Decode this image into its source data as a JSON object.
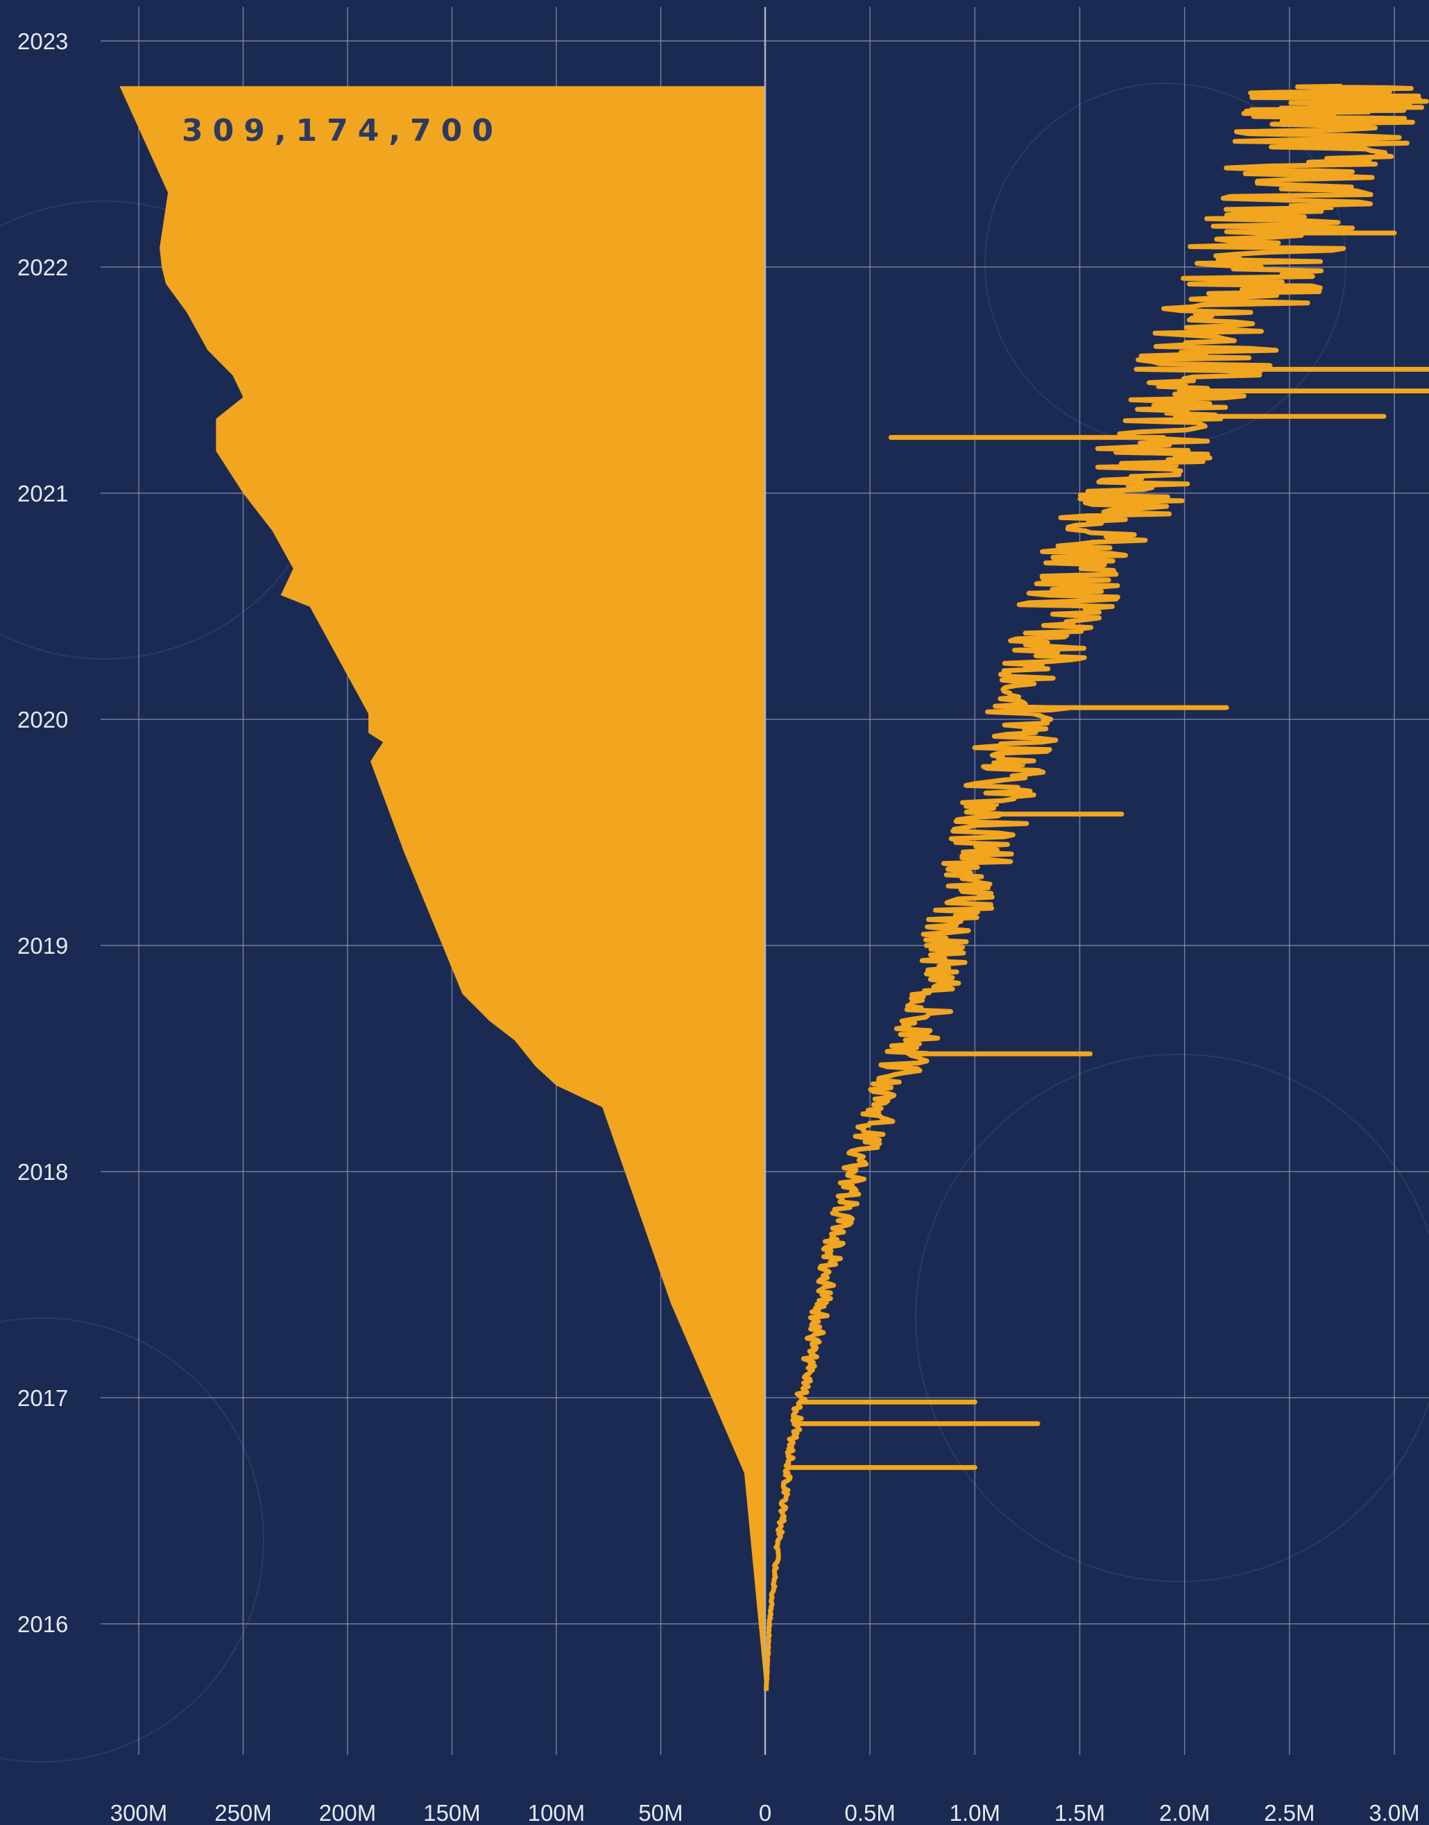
{
  "colors": {
    "background": "#1b2a52",
    "accent": "#f2a51f",
    "grid": "#8e99b3",
    "annotation_text": "#2b3a63",
    "label_text": "#e6e9ef"
  },
  "chart_data": [
    {
      "type": "area",
      "orientation": "horizontal-mirrored",
      "title": "",
      "xlabel": "",
      "ylabel": "",
      "x_direction": "right-to-left",
      "xlim": [
        0,
        300000000
      ],
      "ylim": [
        "2015-09-01",
        "2023-01-01"
      ],
      "x_tick_labels": [
        "300M",
        "250M",
        "200M",
        "150M",
        "100M",
        "50M",
        "0"
      ],
      "y_tick_labels": [
        "2016",
        "2017",
        "2018",
        "2019",
        "2020",
        "2021",
        "2022",
        "2023"
      ],
      "grid": true,
      "annotation": "309,174,700",
      "series": [
        {
          "points": [
            {
              "date": "2015-09-15",
              "value": 0
            },
            {
              "date": "2016-09-01",
              "value": 10000000
            },
            {
              "date": "2017-06-01",
              "value": 45000000
            },
            {
              "date": "2018-04-15",
              "value": 78000000
            },
            {
              "date": "2018-05-20",
              "value": 100000000
            },
            {
              "date": "2018-06-20",
              "value": 110000000
            },
            {
              "date": "2018-08-01",
              "value": 120000000
            },
            {
              "date": "2018-09-01",
              "value": 132000000
            },
            {
              "date": "2018-10-15",
              "value": 145000000
            },
            {
              "date": "2019-06-01",
              "value": 173000000
            },
            {
              "date": "2019-10-25",
              "value": 189000000
            },
            {
              "date": "2019-11-10",
              "value": 186000000
            },
            {
              "date": "2019-11-25",
              "value": 183000000
            },
            {
              "date": "2019-12-10",
              "value": 190000000
            },
            {
              "date": "2020-01-10",
              "value": 190000000
            },
            {
              "date": "2020-07-01",
              "value": 218000000
            },
            {
              "date": "2020-07-20",
              "value": 232000000
            },
            {
              "date": "2020-09-01",
              "value": 226000000
            },
            {
              "date": "2020-11-01",
              "value": 236000000
            },
            {
              "date": "2021-01-01",
              "value": 250000000
            },
            {
              "date": "2021-03-10",
              "value": 263000000
            },
            {
              "date": "2021-05-01",
              "value": 263000000
            },
            {
              "date": "2021-06-05",
              "value": 250000000
            },
            {
              "date": "2021-07-10",
              "value": 255000000
            },
            {
              "date": "2021-08-20",
              "value": 267000000
            },
            {
              "date": "2021-10-20",
              "value": 277000000
            },
            {
              "date": "2021-12-05",
              "value": 287000000
            },
            {
              "date": "2022-01-01",
              "value": 289000000
            },
            {
              "date": "2022-02-01",
              "value": 290000000
            },
            {
              "date": "2022-05-01",
              "value": 286000000
            },
            {
              "date": "2022-10-20",
              "value": 309174700
            }
          ]
        }
      ]
    },
    {
      "type": "line",
      "title": "",
      "xlabel": "",
      "ylabel": "",
      "xlim": [
        0,
        3000000
      ],
      "ylim": [
        "2015-09-01",
        "2023-01-01"
      ],
      "x_tick_labels": [
        "0",
        "0.5M",
        "1.0M",
        "1.5M",
        "2.0M",
        "2.5M",
        "3.0M"
      ],
      "y_tick_labels": [
        "2016",
        "2017",
        "2018",
        "2019",
        "2020",
        "2021",
        "2022",
        "2023"
      ],
      "grid": true,
      "series": [
        {
          "points": [
            {
              "date": "2015-09-15",
              "value": 5000
            },
            {
              "date": "2016-01-01",
              "value": 20000
            },
            {
              "date": "2016-05-01",
              "value": 60000
            },
            {
              "date": "2016-09-01",
              "value": 110000
            },
            {
              "date": "2017-01-01",
              "value": 170000
            },
            {
              "date": "2017-05-01",
              "value": 250000
            },
            {
              "date": "2017-09-01",
              "value": 330000
            },
            {
              "date": "2018-01-01",
              "value": 420000
            },
            {
              "date": "2018-05-01",
              "value": 580000
            },
            {
              "date": "2018-09-01",
              "value": 760000
            },
            {
              "date": "2019-01-01",
              "value": 880000
            },
            {
              "date": "2019-05-01",
              "value": 1000000
            },
            {
              "date": "2019-09-01",
              "value": 1120000
            },
            {
              "date": "2020-01-01",
              "value": 1230000
            },
            {
              "date": "2020-05-01",
              "value": 1350000
            },
            {
              "date": "2020-09-01",
              "value": 1520000
            },
            {
              "date": "2021-01-01",
              "value": 1750000
            },
            {
              "date": "2021-05-01",
              "value": 1950000
            },
            {
              "date": "2021-09-01",
              "value": 2150000
            },
            {
              "date": "2022-01-01",
              "value": 2350000
            },
            {
              "date": "2022-05-01",
              "value": 2550000
            },
            {
              "date": "2022-09-01",
              "value": 2700000
            },
            {
              "date": "2022-10-20",
              "value": 2750000
            }
          ],
          "spikes": [
            {
              "date": "2016-09-10",
              "value": 1000000
            },
            {
              "date": "2016-11-20",
              "value": 1300000
            },
            {
              "date": "2016-12-25",
              "value": 1000000
            },
            {
              "date": "2018-07-10",
              "value": 1550000
            },
            {
              "date": "2019-08-01",
              "value": 1700000
            },
            {
              "date": "2020-01-20",
              "value": 2200000
            },
            {
              "date": "2021-04-01",
              "value": 600000
            },
            {
              "date": "2021-05-05",
              "value": 2950000
            },
            {
              "date": "2021-06-15",
              "value": 3200000
            },
            {
              "date": "2021-07-20",
              "value": 3350000
            },
            {
              "date": "2022-02-25",
              "value": 3000000
            }
          ]
        }
      ]
    }
  ]
}
